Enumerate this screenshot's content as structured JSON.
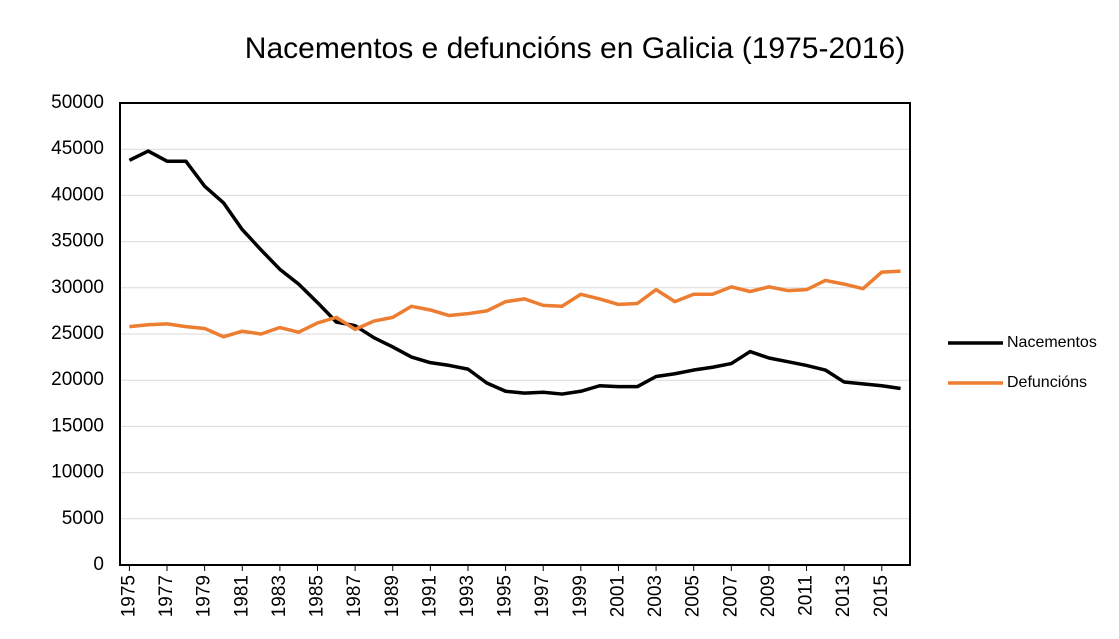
{
  "chart_data": {
    "type": "line",
    "title": "Nacementos e defuncións en Galicia (1975-2016)",
    "x": [
      1975,
      1976,
      1977,
      1978,
      1979,
      1980,
      1981,
      1982,
      1983,
      1984,
      1985,
      1986,
      1987,
      1988,
      1989,
      1990,
      1991,
      1992,
      1993,
      1994,
      1995,
      1996,
      1997,
      1998,
      1999,
      2000,
      2001,
      2002,
      2003,
      2004,
      2005,
      2006,
      2007,
      2008,
      2009,
      2010,
      2011,
      2012,
      2013,
      2014,
      2015,
      2016
    ],
    "series": [
      {
        "name": "Nacementos",
        "color": "#000000",
        "values": [
          43800,
          44800,
          43700,
          43700,
          41000,
          39200,
          36300,
          34100,
          32000,
          30400,
          28400,
          26300,
          25900,
          24600,
          23600,
          22500,
          21900,
          21600,
          21200,
          19700,
          18800,
          18600,
          18700,
          18500,
          18800,
          19400,
          19300,
          19300,
          20400,
          20700,
          21100,
          21400,
          21800,
          23100,
          22400,
          22000,
          21600,
          21100,
          19800,
          19600,
          19400,
          19100
        ]
      },
      {
        "name": "Defuncións",
        "color": "#ed7d31",
        "values": [
          25800,
          26000,
          26100,
          25800,
          25600,
          24700,
          25300,
          25000,
          25700,
          25200,
          26200,
          26800,
          25500,
          26400,
          26800,
          28000,
          27600,
          27000,
          27200,
          27500,
          28500,
          28800,
          28100,
          28000,
          29300,
          28800,
          28200,
          28300,
          29800,
          28500,
          29300,
          29300,
          30100,
          29600,
          30100,
          29700,
          29800,
          30800,
          30400,
          29900,
          31700,
          31800
        ]
      }
    ],
    "xlim": [
      1974.5,
      2016.5
    ],
    "xticks": [
      1975,
      1977,
      1979,
      1981,
      1983,
      1985,
      1987,
      1989,
      1991,
      1993,
      1995,
      1997,
      1999,
      2001,
      2003,
      2005,
      2007,
      2009,
      2011,
      2013,
      2015
    ],
    "ylim": [
      0,
      50000
    ],
    "yticks": [
      0,
      5000,
      10000,
      15000,
      20000,
      25000,
      30000,
      35000,
      40000,
      45000,
      50000
    ],
    "grid": true,
    "legend": "right"
  }
}
